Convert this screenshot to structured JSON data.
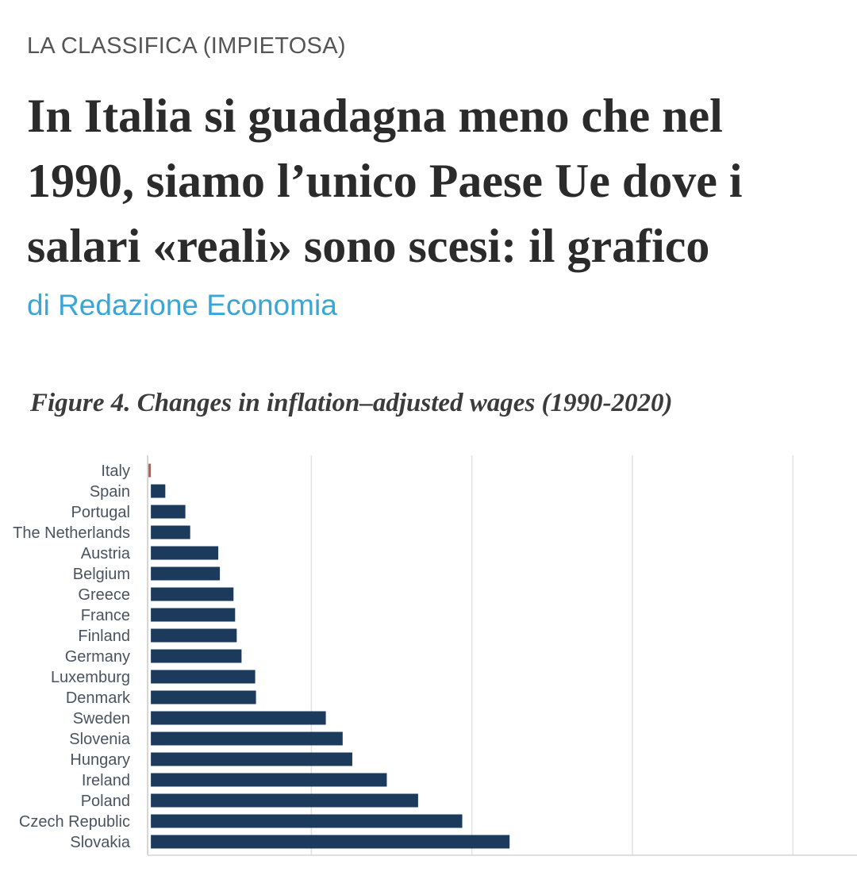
{
  "article": {
    "kicker": "LA CLASSIFICA (IMPIETOSA)",
    "headline": "In Italia si guadagna meno che nel 1990, siamo l’unico Paese Ue dove i salari «reali» sono scesi: il grafico",
    "byline": "di Redazione Economia"
  },
  "colors": {
    "bar": "#1b3a5c",
    "highlight_bar": "#c2584a",
    "byline": "#3aa6d8",
    "gridline": "#e2e2e2"
  },
  "chart_data": {
    "type": "bar",
    "orientation": "horizontal",
    "title": "Figure 4. Changes in inflation–adjusted wages (1990-2020)",
    "categories": [
      "Italy",
      "Spain",
      "Portugal",
      "The Netherlands",
      "Austria",
      "Belgium",
      "Greece",
      "France",
      "Finland",
      "Germany",
      "Luxemburg",
      "Denmark",
      "Sweden",
      "Slovenia",
      "Hungary",
      "Ireland",
      "Poland",
      "Czech Republic",
      "Slovakia"
    ],
    "values": [
      -0.3,
      1.8,
      4.3,
      4.9,
      8.4,
      8.6,
      10.3,
      10.5,
      10.7,
      11.3,
      13.0,
      13.1,
      21.8,
      23.9,
      25.1,
      29.4,
      33.3,
      38.8,
      44.7
    ],
    "xlim": [
      -1,
      87
    ],
    "grid": true,
    "highlight": "Italy"
  }
}
